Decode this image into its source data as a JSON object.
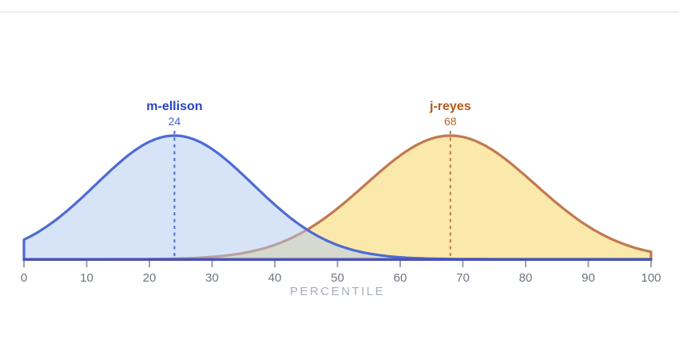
{
  "page": {
    "background": "#ffffff",
    "divider_color": "#eeeeee"
  },
  "chart_data": {
    "type": "area",
    "description": "Two overlapping bell-curve (normal distribution) areas marking each person's percentile with a dashed vertical line at the peak",
    "title": "",
    "xlabel": "PERCENTILE",
    "xlim": [
      0,
      100
    ],
    "x_ticks": [
      "0",
      "10",
      "20",
      "30",
      "40",
      "50",
      "60",
      "70",
      "80",
      "90",
      "100"
    ],
    "grid": false,
    "legend_position": "labels-above-peaks",
    "series": [
      {
        "name": "j-reyes",
        "peak": 68,
        "mean": 68,
        "sigma": 13.5,
        "stroke_color": "#c1794e",
        "fill_color": "#f7d157",
        "fill_opacity": 0.5,
        "name_color": "#b4591a",
        "value_color": "#b06a28",
        "marker_style": "dashed-vertical-line"
      },
      {
        "name": "m-ellison",
        "peak": 24,
        "mean": 24,
        "sigma": 12.5,
        "stroke_color": "#4e6ad4",
        "fill_color": "#afc9f1",
        "fill_opacity": 0.5,
        "name_color": "#2745c4",
        "value_color": "#4560ce",
        "marker_style": "dashed-vertical-line"
      }
    ],
    "axis": {
      "line_color": "#4a53b4",
      "tick_color": "#9aa1ab",
      "tick_label_color": "#6d7480",
      "xlabel_color": "#a9aeb8"
    }
  }
}
